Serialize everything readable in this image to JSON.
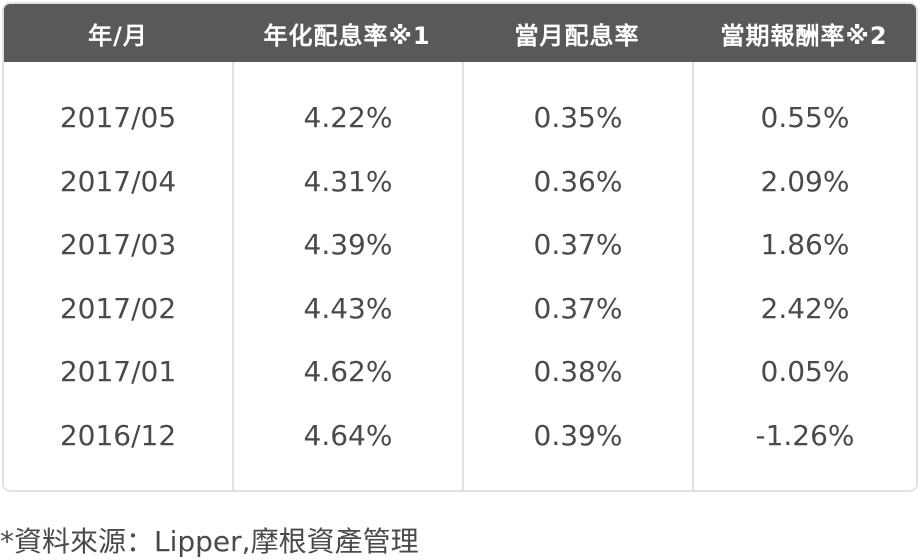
{
  "table": {
    "headers": [
      "年/月",
      "年化配息率※1",
      "當月配息率",
      "當期報酬率※2"
    ],
    "rows": [
      [
        "2017/05",
        "4.22%",
        "0.35%",
        "0.55%"
      ],
      [
        "2017/04",
        "4.31%",
        "0.36%",
        "2.09%"
      ],
      [
        "2017/03",
        "4.39%",
        "0.37%",
        "1.86%"
      ],
      [
        "2017/02",
        "4.43%",
        "0.37%",
        "2.42%"
      ],
      [
        "2017/01",
        "4.62%",
        "0.38%",
        "0.05%"
      ],
      [
        "2016/12",
        "4.64%",
        "0.39%",
        "-1.26%"
      ]
    ]
  },
  "footnote": "*資料來源：Lipper,摩根資產管理",
  "colors": {
    "header_bg": "#58595b",
    "header_text": "#ffffff",
    "body_text": "#4a4a4a",
    "border": "#e2e2e2"
  }
}
